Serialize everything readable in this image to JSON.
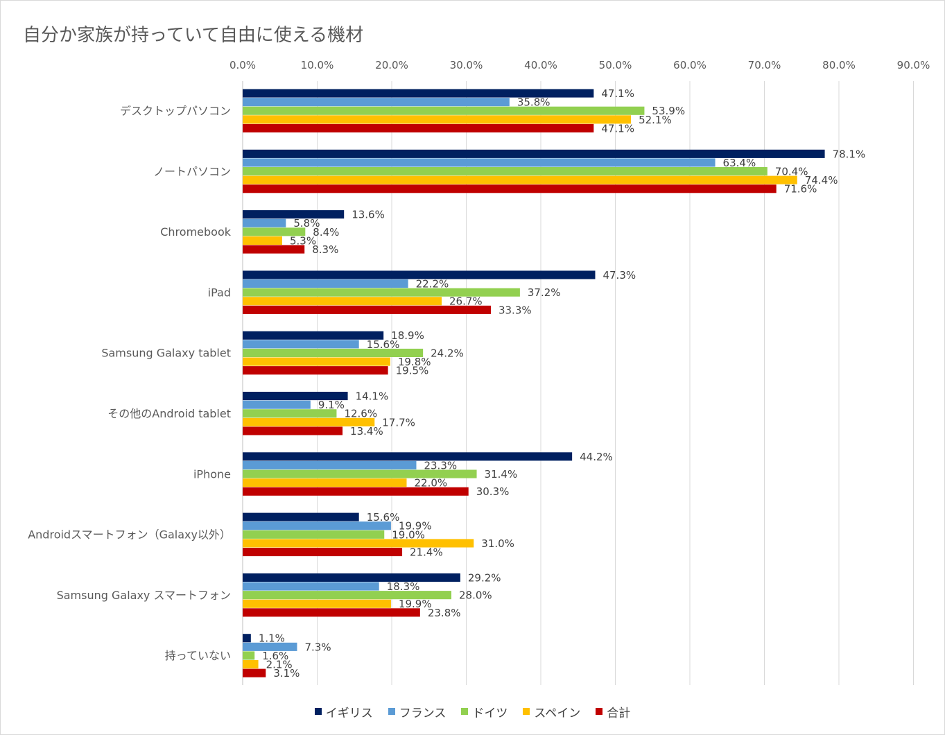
{
  "chart_data": {
    "type": "bar",
    "orientation": "horizontal",
    "title": "自分か家族が持っていて自由に使える機材",
    "categories": [
      "デスクトップパソコン",
      "ノートパソコン",
      "Chromebook",
      "iPad",
      "Samsung Galaxy tablet",
      "その他のAndroid tablet",
      "iPhone",
      "Androidスマートフォン（Galaxy以外）",
      "Samsung Galaxy スマートフォン",
      "持っていない"
    ],
    "series": [
      {
        "name": "イギリス",
        "color": "#002060",
        "values": [
          47.1,
          78.1,
          13.6,
          47.3,
          18.9,
          14.1,
          44.2,
          15.6,
          29.2,
          1.1
        ]
      },
      {
        "name": "フランス",
        "color": "#5b9bd5",
        "values": [
          35.8,
          63.4,
          5.8,
          22.2,
          15.6,
          9.1,
          23.3,
          19.9,
          18.3,
          7.3
        ]
      },
      {
        "name": "ドイツ",
        "color": "#92d050",
        "values": [
          53.9,
          70.4,
          8.4,
          37.2,
          24.2,
          12.6,
          31.4,
          19.0,
          28.0,
          1.6
        ]
      },
      {
        "name": "スペイン",
        "color": "#ffc000",
        "values": [
          52.1,
          74.4,
          5.3,
          26.7,
          19.8,
          17.7,
          22.0,
          31.0,
          19.9,
          2.1
        ]
      },
      {
        "name": "合計",
        "color": "#c00000",
        "values": [
          47.1,
          71.6,
          8.3,
          33.3,
          19.5,
          13.4,
          30.3,
          21.4,
          23.8,
          3.1
        ]
      }
    ],
    "xlim": [
      0,
      90
    ],
    "x_ticks": [
      "0.0%",
      "10.0%",
      "20.0%",
      "30.0%",
      "40.0%",
      "50.0%",
      "60.0%",
      "70.0%",
      "80.0%",
      "90.0%"
    ],
    "value_suffix": "%",
    "grid": true,
    "axis_position": "top",
    "legend_position": "bottom"
  }
}
